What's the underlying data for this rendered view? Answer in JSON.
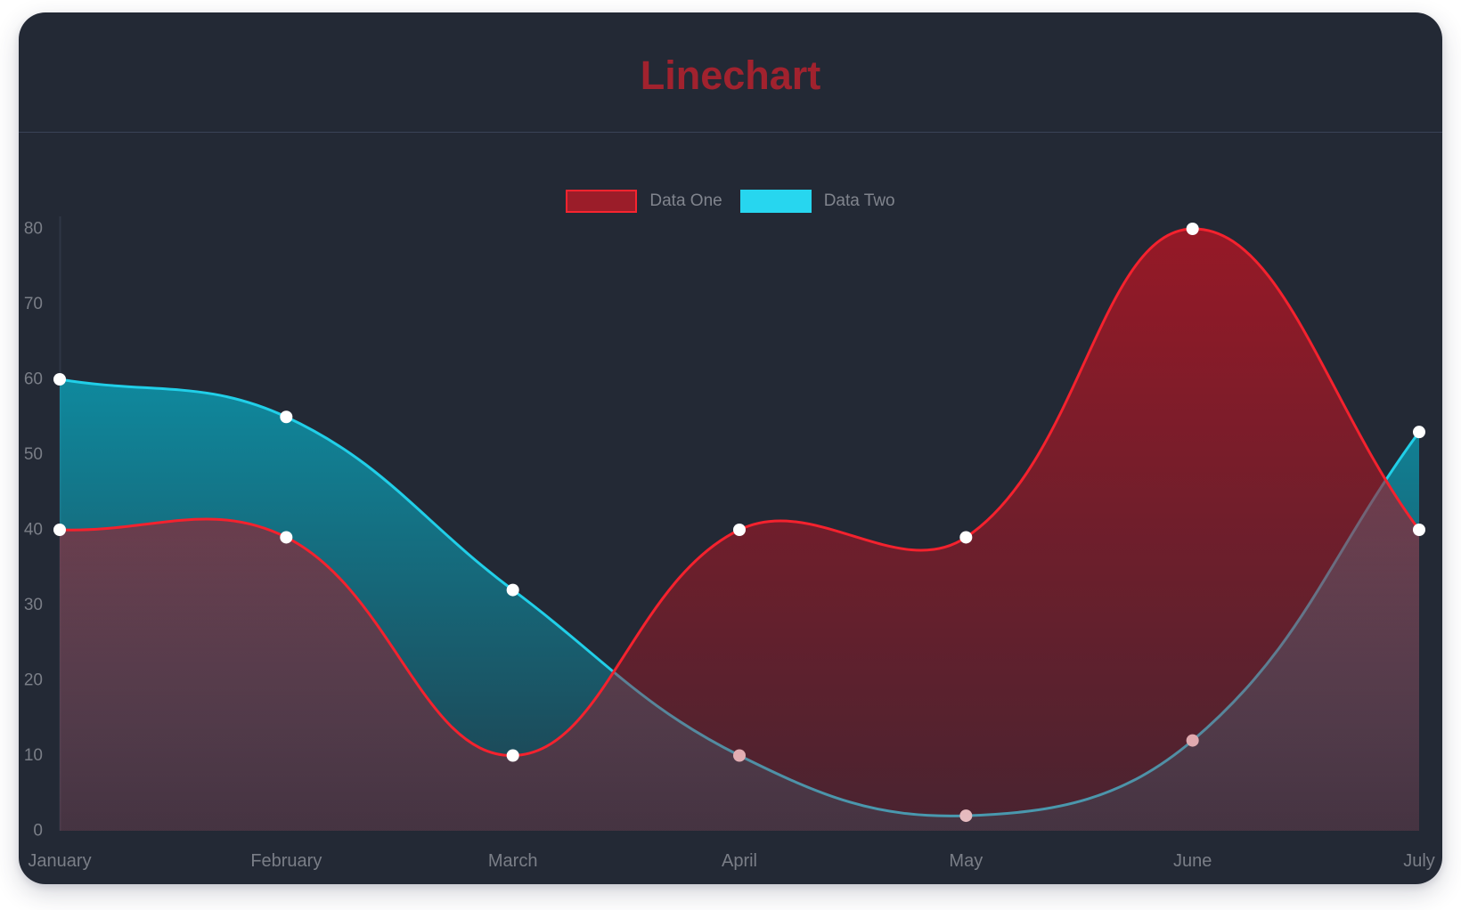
{
  "chart_data": {
    "type": "line",
    "title": "Linechart",
    "categories": [
      "January",
      "February",
      "March",
      "April",
      "May",
      "June",
      "July"
    ],
    "series": [
      {
        "name": "Data One",
        "values": [
          40,
          39,
          10,
          40,
          39,
          80,
          40
        ],
        "line_color": "#f4222e",
        "point_color": "#ffffff",
        "area_top_color": "rgba(170,22,36,0.85)",
        "area_bottom_color": "rgba(170,22,36,0.28)",
        "legend_swatch_fill": "#9b1d29",
        "legend_swatch_border": "#f8242f"
      },
      {
        "name": "Data Two",
        "values": [
          60,
          55,
          32,
          10,
          2,
          12,
          53
        ],
        "line_color": "#21cfe8",
        "point_color": "#ffffff",
        "area_top_color": "rgba(0,208,235,0.72)",
        "area_bottom_color": "rgba(0,208,235,0.13)",
        "legend_swatch_fill": "#27d6ef",
        "legend_swatch_border": "#27d6ef"
      }
    ],
    "ylim": [
      0,
      80
    ],
    "ytick_step": 10,
    "ytick_labels": [
      "0",
      "10",
      "20",
      "30",
      "40",
      "50",
      "60",
      "70",
      "80"
    ],
    "legend_position": "top",
    "grid": false,
    "curve_style": "smooth"
  },
  "colors": {
    "page_bg": "#ffffff",
    "card_bg": "#232935",
    "title": "#a1222e",
    "divider": "#3a4356",
    "legend_text": "#80848d",
    "axis_text": "#7a7e87",
    "axis_line": "#2f3645"
  }
}
